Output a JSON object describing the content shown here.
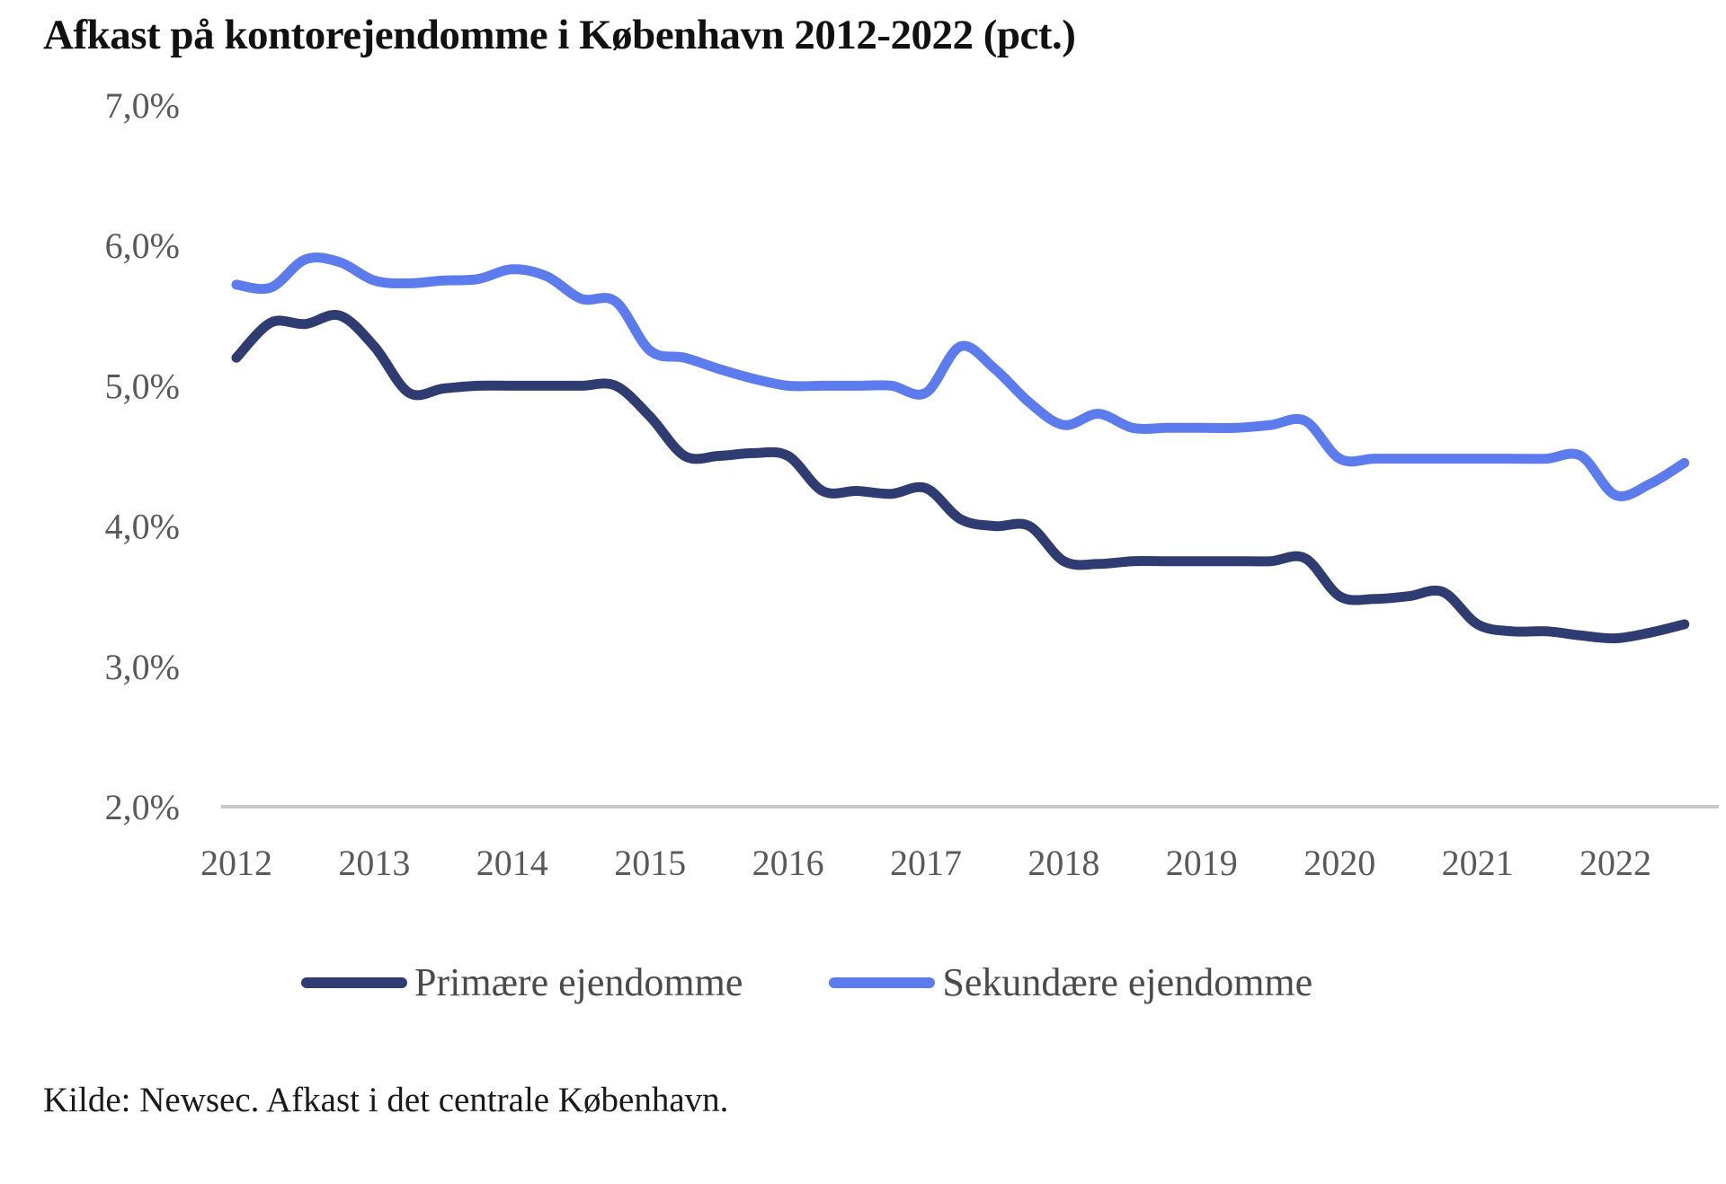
{
  "title": "Afkast på kontorejendomme i København 2012-2022 (pct.)",
  "source": "Kilde: Newsec. Afkast i det centrale København.",
  "legend": {
    "primary": "Primære ejendomme",
    "secondary": "Sekundære ejendomme"
  },
  "colors": {
    "primary": "#2E3C72",
    "secondary": "#5C7CEE",
    "axis_text": "#595959",
    "axis_line": "#C9C9C9",
    "title_text": "#111111",
    "legend_text": "#4a4a4a",
    "source_text": "#1a1a1a"
  },
  "chart_data": {
    "type": "line",
    "title": "Afkast på kontorejendomme i København 2012-2022 (pct.)",
    "xlabel": "",
    "ylabel": "",
    "x_unit": "year (quarterly points)",
    "xlim": [
      2012.0,
      2022.75
    ],
    "ylim": [
      2.0,
      7.0
    ],
    "grid": "baseline-only",
    "legend_position": "bottom-center",
    "x_tick_labels": [
      "2012",
      "2013",
      "2014",
      "2015",
      "2016",
      "2017",
      "2018",
      "2019",
      "2020",
      "2021",
      "2022"
    ],
    "x_tick_values": [
      2012,
      2013,
      2014,
      2015,
      2016,
      2017,
      2018,
      2019,
      2020,
      2021,
      2022
    ],
    "y_tick_labels": [
      "2,0%",
      "3,0%",
      "4,0%",
      "5,0%",
      "6,0%",
      "7,0%"
    ],
    "y_tick_values": [
      2,
      3,
      4,
      5,
      6,
      7
    ],
    "x": [
      2012.0,
      2012.25,
      2012.5,
      2012.75,
      2013.0,
      2013.25,
      2013.5,
      2013.75,
      2014.0,
      2014.25,
      2014.5,
      2014.75,
      2015.0,
      2015.25,
      2015.5,
      2015.75,
      2016.0,
      2016.25,
      2016.5,
      2016.75,
      2017.0,
      2017.25,
      2017.5,
      2017.75,
      2018.0,
      2018.25,
      2018.5,
      2018.75,
      2019.0,
      2019.25,
      2019.5,
      2019.75,
      2020.0,
      2020.25,
      2020.5,
      2020.75,
      2021.0,
      2021.25,
      2021.5,
      2021.75,
      2022.0,
      2022.25,
      2022.5
    ],
    "series": [
      {
        "name": "Primære ejendomme",
        "color_key": "primary",
        "values": [
          5.2,
          5.45,
          5.44,
          5.5,
          5.28,
          4.95,
          4.98,
          5.0,
          5.0,
          5.0,
          5.0,
          5.0,
          4.78,
          4.5,
          4.5,
          4.52,
          4.5,
          4.25,
          4.25,
          4.23,
          4.27,
          4.05,
          4.0,
          4.0,
          3.75,
          3.73,
          3.75,
          3.75,
          3.75,
          3.75,
          3.75,
          3.77,
          3.5,
          3.48,
          3.5,
          3.53,
          3.3,
          3.25,
          3.25,
          3.22,
          3.2,
          3.24,
          3.3
        ]
      },
      {
        "name": "Sekundære ejendomme",
        "color_key": "secondary",
        "values": [
          5.72,
          5.7,
          5.9,
          5.88,
          5.75,
          5.73,
          5.75,
          5.76,
          5.83,
          5.78,
          5.62,
          5.6,
          5.25,
          5.2,
          5.12,
          5.05,
          5.0,
          5.0,
          5.0,
          5.0,
          4.95,
          5.28,
          5.12,
          4.88,
          4.72,
          4.8,
          4.7,
          4.7,
          4.7,
          4.7,
          4.72,
          4.75,
          4.48,
          4.48,
          4.48,
          4.48,
          4.48,
          4.48,
          4.48,
          4.5,
          4.22,
          4.3,
          4.45
        ]
      }
    ]
  }
}
